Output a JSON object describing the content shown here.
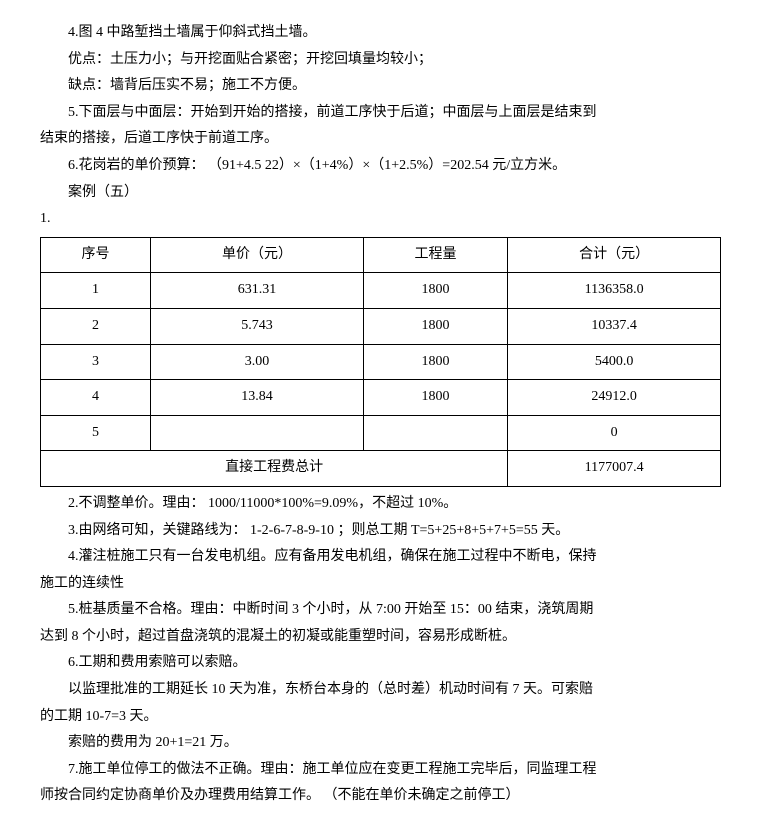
{
  "lines": {
    "l1": "4.图 4 中路堑挡土墙属于仰斜式挡土墙。",
    "l2": "优点：土压力小；与开挖面贴合紧密；开挖回填量均较小；",
    "l3": "缺点：墙背后压实不易；施工不方便。",
    "l4": "5.下面层与中面层：开始到开始的搭接，前道工序快于后道；中面层与上面层是结束到",
    "l4b": "结束的搭接，后道工序快于前道工序。",
    "l5": "6.花岗岩的单价预算：    （91+4.5   22）×（1+4%）×（1+2.5%）=202.54 元/立方米。",
    "l6": "案例（五）",
    "l7": "1."
  },
  "table": {
    "headers": [
      "序号",
      "单价（元）",
      "工程量",
      "合计（元）"
    ],
    "rows": [
      [
        "1",
        "631.31",
        "1800",
        "1136358.0"
      ],
      [
        "2",
        "5.743",
        "1800",
        "10337.4"
      ],
      [
        "3",
        "3.00",
        "1800",
        "5400.0"
      ],
      [
        "4",
        "13.84",
        "1800",
        "24912.0"
      ],
      [
        "5",
        "",
        "",
        "0"
      ]
    ],
    "totalLabel": "直接工程费总计",
    "totalValue": "1177007.4"
  },
  "after": {
    "a1": "2.不调整单价。理由：      1000/11000*100%=9.09%，不超过  10%。",
    "a2": "3.由网络可知，关键路线为：      1-2-6-7-8-9-10 ；则总工期  T=5+25+8+5+7+5=55   天。",
    "a3": "4.灌注桩施工只有一台发电机组。应有备用发电机组，确保在施工过程中不断电，保持",
    "a3b": "施工的连续性",
    "a4": "5.桩基质量不合格。理由：中断时间      3 个小时，从   7:00  开始至   15：00 结束，浇筑周期",
    "a4b": "达到  8 个小时，超过首盘浇筑的混凝土的初凝或能重塑时间，容易形成断桩。",
    "a5": "6.工期和费用索赔可以索赔。",
    "a6": "以监理批准的工期延长      10 天为准，东桥台本身的（总时差）机动时间有        7 天。可索赔",
    "a6b": "的工期  10-7=3 天。",
    "a7": "索赔的费用为    20+1=21 万。",
    "a8": "7.施工单位停工的做法不正确。理由：施工单位应在变更工程施工完毕后，同监理工程",
    "a8b": "师按合同约定协商单价及办理费用结算工作。       （不能在单价未确定之前停工）"
  }
}
